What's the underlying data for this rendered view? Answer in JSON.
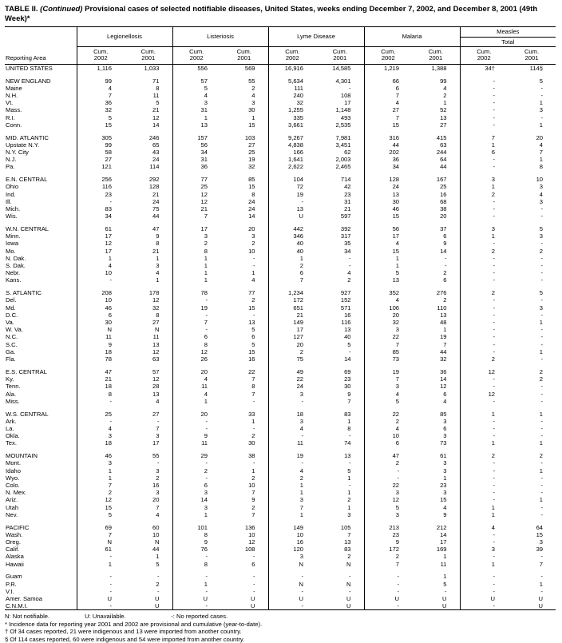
{
  "title": {
    "table_label": "TABLE II.",
    "continued": "(Continued)",
    "text": "Provisional cases of selected notifiable diseases, United States, weeks ending December 7, 2002, and December 8, 2001 (49th Week)*"
  },
  "table": {
    "reporting_area_header": "Reporting Area",
    "cum_label": "Cum.",
    "years": [
      "2002",
      "2001"
    ],
    "col_groups": [
      {
        "label": "Legionellosis"
      },
      {
        "label": "Listeriosis"
      },
      {
        "label": "Lyme Disease"
      },
      {
        "label": "Malaria"
      },
      {
        "label": "Measles",
        "sub": "Total"
      }
    ],
    "rows": [
      {
        "area": "UNITED STATES",
        "type": "total",
        "values": [
          "1,116",
          "1,033",
          "556",
          "569",
          "16,916",
          "14,585",
          "1,219",
          "1,388",
          "34†",
          "114§"
        ]
      },
      {
        "spacer": true
      },
      {
        "area": "NEW ENGLAND",
        "type": "region",
        "values": [
          "99",
          "71",
          "57",
          "55",
          "5,634",
          "4,301",
          "66",
          "99",
          "-",
          "5"
        ]
      },
      {
        "area": "Maine",
        "type": "state",
        "values": [
          "4",
          "8",
          "5",
          "2",
          "111",
          "-",
          "6",
          "4",
          "-",
          "-"
        ]
      },
      {
        "area": "N.H.",
        "type": "state",
        "values": [
          "7",
          "11",
          "4",
          "4",
          "240",
          "108",
          "7",
          "2",
          "-",
          "-"
        ]
      },
      {
        "area": "Vt.",
        "type": "state",
        "values": [
          "36",
          "5",
          "3",
          "3",
          "32",
          "17",
          "4",
          "1",
          "-",
          "1"
        ]
      },
      {
        "area": "Mass.",
        "type": "state",
        "values": [
          "32",
          "21",
          "31",
          "30",
          "1,255",
          "1,148",
          "27",
          "52",
          "-",
          "3"
        ]
      },
      {
        "area": "R.I.",
        "type": "state",
        "values": [
          "5",
          "12",
          "1",
          "1",
          "335",
          "493",
          "7",
          "13",
          "-",
          "-"
        ]
      },
      {
        "area": "Conn.",
        "type": "state",
        "values": [
          "15",
          "14",
          "13",
          "15",
          "3,661",
          "2,535",
          "15",
          "27",
          "-",
          "1"
        ]
      },
      {
        "spacer": true
      },
      {
        "area": "MID. ATLANTIC",
        "type": "region",
        "values": [
          "305",
          "246",
          "157",
          "103",
          "9,267",
          "7,981",
          "316",
          "415",
          "7",
          "20"
        ]
      },
      {
        "area": "Upstate N.Y.",
        "type": "state",
        "values": [
          "99",
          "65",
          "56",
          "27",
          "4,838",
          "3,451",
          "44",
          "63",
          "1",
          "4"
        ]
      },
      {
        "area": "N.Y. City",
        "type": "state",
        "values": [
          "58",
          "43",
          "34",
          "25",
          "166",
          "62",
          "202",
          "244",
          "6",
          "7"
        ]
      },
      {
        "area": "N.J.",
        "type": "state",
        "values": [
          "27",
          "24",
          "31",
          "19",
          "1,641",
          "2,003",
          "36",
          "64",
          "-",
          "1"
        ]
      },
      {
        "area": "Pa.",
        "type": "state",
        "values": [
          "121",
          "114",
          "36",
          "32",
          "2,622",
          "2,465",
          "34",
          "44",
          "-",
          "8"
        ]
      },
      {
        "spacer": true
      },
      {
        "area": "E.N. CENTRAL",
        "type": "region",
        "values": [
          "256",
          "292",
          "77",
          "85",
          "104",
          "714",
          "128",
          "167",
          "3",
          "10"
        ]
      },
      {
        "area": "Ohio",
        "type": "state",
        "values": [
          "116",
          "128",
          "25",
          "15",
          "72",
          "42",
          "24",
          "25",
          "1",
          "3"
        ]
      },
      {
        "area": "Ind.",
        "type": "state",
        "values": [
          "23",
          "21",
          "12",
          "8",
          "19",
          "23",
          "13",
          "16",
          "2",
          "4"
        ]
      },
      {
        "area": "Ill.",
        "type": "state",
        "values": [
          "-",
          "24",
          "12",
          "24",
          "-",
          "31",
          "30",
          "68",
          "-",
          "3"
        ]
      },
      {
        "area": "Mich.",
        "type": "state",
        "values": [
          "83",
          "75",
          "21",
          "24",
          "13",
          "21",
          "46",
          "38",
          "-",
          "-"
        ]
      },
      {
        "area": "Wis.",
        "type": "state",
        "values": [
          "34",
          "44",
          "7",
          "14",
          "U",
          "597",
          "15",
          "20",
          "-",
          "-"
        ]
      },
      {
        "spacer": true
      },
      {
        "area": "W.N. CENTRAL",
        "type": "region",
        "values": [
          "61",
          "47",
          "17",
          "20",
          "442",
          "392",
          "56",
          "37",
          "3",
          "5"
        ]
      },
      {
        "area": "Minn.",
        "type": "state",
        "values": [
          "17",
          "9",
          "3",
          "3",
          "346",
          "317",
          "17",
          "6",
          "1",
          "3"
        ]
      },
      {
        "area": "Iowa",
        "type": "state",
        "values": [
          "12",
          "8",
          "2",
          "2",
          "40",
          "35",
          "4",
          "9",
          "-",
          "-"
        ]
      },
      {
        "area": "Mo.",
        "type": "state",
        "values": [
          "17",
          "21",
          "8",
          "10",
          "40",
          "34",
          "15",
          "14",
          "2",
          "2"
        ]
      },
      {
        "area": "N. Dak.",
        "type": "state",
        "values": [
          "1",
          "1",
          "1",
          "-",
          "1",
          "-",
          "1",
          "-",
          "-",
          "-"
        ]
      },
      {
        "area": "S. Dak.",
        "type": "state",
        "values": [
          "4",
          "3",
          "1",
          "-",
          "2",
          "-",
          "1",
          "-",
          "-",
          "-"
        ]
      },
      {
        "area": "Nebr.",
        "type": "state",
        "values": [
          "10",
          "4",
          "1",
          "1",
          "6",
          "4",
          "5",
          "2",
          "-",
          "-"
        ]
      },
      {
        "area": "Kans.",
        "type": "state",
        "values": [
          "-",
          "1",
          "1",
          "4",
          "7",
          "2",
          "13",
          "6",
          "-",
          "-"
        ]
      },
      {
        "spacer": true
      },
      {
        "area": "S. ATLANTIC",
        "type": "region",
        "values": [
          "208",
          "178",
          "78",
          "77",
          "1,234",
          "927",
          "352",
          "276",
          "2",
          "5"
        ]
      },
      {
        "area": "Del.",
        "type": "state",
        "values": [
          "10",
          "12",
          "-",
          "2",
          "172",
          "152",
          "4",
          "2",
          "-",
          "-"
        ]
      },
      {
        "area": "Md.",
        "type": "state",
        "values": [
          "46",
          "32",
          "19",
          "15",
          "651",
          "571",
          "106",
          "110",
          "-",
          "3"
        ]
      },
      {
        "area": "D.C.",
        "type": "state",
        "values": [
          "6",
          "8",
          "-",
          "-",
          "21",
          "16",
          "20",
          "13",
          "-",
          "-"
        ]
      },
      {
        "area": "Va.",
        "type": "state",
        "values": [
          "30",
          "27",
          "7",
          "13",
          "149",
          "116",
          "32",
          "48",
          "-",
          "1"
        ]
      },
      {
        "area": "W. Va.",
        "type": "state",
        "values": [
          "N",
          "N",
          "-",
          "5",
          "17",
          "13",
          "3",
          "1",
          "-",
          "-"
        ]
      },
      {
        "area": "N.C.",
        "type": "state",
        "values": [
          "11",
          "11",
          "6",
          "6",
          "127",
          "40",
          "22",
          "19",
          "-",
          "-"
        ]
      },
      {
        "area": "S.C.",
        "type": "state",
        "values": [
          "9",
          "13",
          "8",
          "5",
          "20",
          "5",
          "7",
          "7",
          "-",
          "-"
        ]
      },
      {
        "area": "Ga.",
        "type": "state",
        "values": [
          "18",
          "12",
          "12",
          "15",
          "2",
          "-",
          "85",
          "44",
          "-",
          "1"
        ]
      },
      {
        "area": "Fla.",
        "type": "state",
        "values": [
          "78",
          "63",
          "26",
          "16",
          "75",
          "14",
          "73",
          "32",
          "2",
          "-"
        ]
      },
      {
        "spacer": true
      },
      {
        "area": "E.S. CENTRAL",
        "type": "region",
        "values": [
          "47",
          "57",
          "20",
          "22",
          "49",
          "69",
          "19",
          "36",
          "12",
          "2"
        ]
      },
      {
        "area": "Ky.",
        "type": "state",
        "values": [
          "21",
          "12",
          "4",
          "7",
          "22",
          "23",
          "7",
          "14",
          "-",
          "2"
        ]
      },
      {
        "area": "Tenn.",
        "type": "state",
        "values": [
          "18",
          "28",
          "11",
          "8",
          "24",
          "30",
          "3",
          "12",
          "-",
          "-"
        ]
      },
      {
        "area": "Ala.",
        "type": "state",
        "values": [
          "8",
          "13",
          "4",
          "7",
          "3",
          "9",
          "4",
          "6",
          "12",
          "-"
        ]
      },
      {
        "area": "Miss.",
        "type": "state",
        "values": [
          "-",
          "4",
          "1",
          "-",
          "-",
          "7",
          "5",
          "4",
          "-",
          "-"
        ]
      },
      {
        "spacer": true
      },
      {
        "area": "W.S. CENTRAL",
        "type": "region",
        "values": [
          "25",
          "27",
          "20",
          "33",
          "18",
          "83",
          "22",
          "85",
          "1",
          "1"
        ]
      },
      {
        "area": "Ark.",
        "type": "state",
        "values": [
          "-",
          "-",
          "-",
          "1",
          "3",
          "1",
          "2",
          "3",
          "-",
          "-"
        ]
      },
      {
        "area": "La.",
        "type": "state",
        "values": [
          "4",
          "7",
          "-",
          "-",
          "4",
          "8",
          "4",
          "6",
          "-",
          "-"
        ]
      },
      {
        "area": "Okla.",
        "type": "state",
        "values": [
          "3",
          "3",
          "9",
          "2",
          "-",
          "-",
          "10",
          "3",
          "-",
          "-"
        ]
      },
      {
        "area": "Tex.",
        "type": "state",
        "values": [
          "18",
          "17",
          "11",
          "30",
          "11",
          "74",
          "6",
          "73",
          "1",
          "1"
        ]
      },
      {
        "spacer": true
      },
      {
        "area": "MOUNTAIN",
        "type": "region",
        "values": [
          "46",
          "55",
          "29",
          "38",
          "19",
          "13",
          "47",
          "61",
          "2",
          "2"
        ]
      },
      {
        "area": "Mont.",
        "type": "state",
        "values": [
          "3",
          "-",
          "-",
          "-",
          "-",
          "-",
          "2",
          "3",
          "-",
          "-"
        ]
      },
      {
        "area": "Idaho",
        "type": "state",
        "values": [
          "1",
          "3",
          "2",
          "1",
          "4",
          "5",
          "-",
          "3",
          "-",
          "1"
        ]
      },
      {
        "area": "Wyo.",
        "type": "state",
        "values": [
          "1",
          "2",
          "-",
          "2",
          "2",
          "1",
          "-",
          "1",
          "-",
          "-"
        ]
      },
      {
        "area": "Colo.",
        "type": "state",
        "values": [
          "7",
          "16",
          "6",
          "10",
          "1",
          "-",
          "22",
          "23",
          "-",
          "-"
        ]
      },
      {
        "area": "N. Mex.",
        "type": "state",
        "values": [
          "2",
          "3",
          "3",
          "7",
          "1",
          "1",
          "3",
          "3",
          "-",
          "-"
        ]
      },
      {
        "area": "Ariz.",
        "type": "state",
        "values": [
          "12",
          "20",
          "14",
          "9",
          "3",
          "2",
          "12",
          "15",
          "-",
          "1"
        ]
      },
      {
        "area": "Utah",
        "type": "state",
        "values": [
          "15",
          "7",
          "3",
          "2",
          "7",
          "1",
          "5",
          "4",
          "1",
          "-"
        ]
      },
      {
        "area": "Nev.",
        "type": "state",
        "values": [
          "5",
          "4",
          "1",
          "7",
          "1",
          "3",
          "3",
          "9",
          "1",
          "-"
        ]
      },
      {
        "spacer": true
      },
      {
        "area": "PACIFIC",
        "type": "region",
        "values": [
          "69",
          "60",
          "101",
          "136",
          "149",
          "105",
          "213",
          "212",
          "4",
          "64"
        ]
      },
      {
        "area": "Wash.",
        "type": "state",
        "values": [
          "7",
          "10",
          "8",
          "10",
          "10",
          "7",
          "23",
          "14",
          "-",
          "15"
        ]
      },
      {
        "area": "Oreg.",
        "type": "state",
        "values": [
          "N",
          "N",
          "9",
          "12",
          "16",
          "13",
          "9",
          "17",
          "-",
          "3"
        ]
      },
      {
        "area": "Calif.",
        "type": "state",
        "values": [
          "61",
          "44",
          "76",
          "108",
          "120",
          "83",
          "172",
          "169",
          "3",
          "39"
        ]
      },
      {
        "area": "Alaska",
        "type": "state",
        "values": [
          "-",
          "1",
          "-",
          "-",
          "3",
          "2",
          "2",
          "1",
          "-",
          "-"
        ]
      },
      {
        "area": "Hawaii",
        "type": "state",
        "values": [
          "1",
          "5",
          "8",
          "6",
          "N",
          "N",
          "7",
          "11",
          "1",
          "7"
        ]
      },
      {
        "spacer": true
      },
      {
        "area": "Guam",
        "type": "territory",
        "values": [
          "-",
          "-",
          "-",
          "-",
          "-",
          "-",
          "-",
          "1",
          "-",
          "-"
        ]
      },
      {
        "area": "P.R.",
        "type": "territory",
        "values": [
          "-",
          "2",
          "1",
          "-",
          "N",
          "N",
          "-",
          "5",
          "-",
          "1"
        ]
      },
      {
        "area": "V.I.",
        "type": "territory",
        "values": [
          "-",
          "-",
          "-",
          "-",
          "-",
          "-",
          "-",
          "-",
          "-",
          "-"
        ]
      },
      {
        "area": "Amer. Samoa",
        "type": "territory",
        "values": [
          "U",
          "U",
          "U",
          "U",
          "U",
          "U",
          "U",
          "U",
          "U",
          "U"
        ]
      },
      {
        "area": "C.N.M.I.",
        "type": "territory",
        "values": [
          "-",
          "U",
          "-",
          "U",
          "-",
          "U",
          "-",
          "U",
          "-",
          "U"
        ]
      }
    ]
  },
  "footnotes": {
    "legend": [
      {
        "label": "N: Not notifiable."
      },
      {
        "label": "U: Unavailable."
      },
      {
        "label": "-: No reported cases."
      }
    ],
    "notes": [
      "* Incidence data for reporting year 2001 and 2002 are provisional and cumulative (year-to-date).",
      "† Of 34 cases reported, 21 were indigenous and 13 were imported from another country.",
      "§ Of 114 cases reported, 60 were indigenous and 54 were imported from another country."
    ]
  }
}
